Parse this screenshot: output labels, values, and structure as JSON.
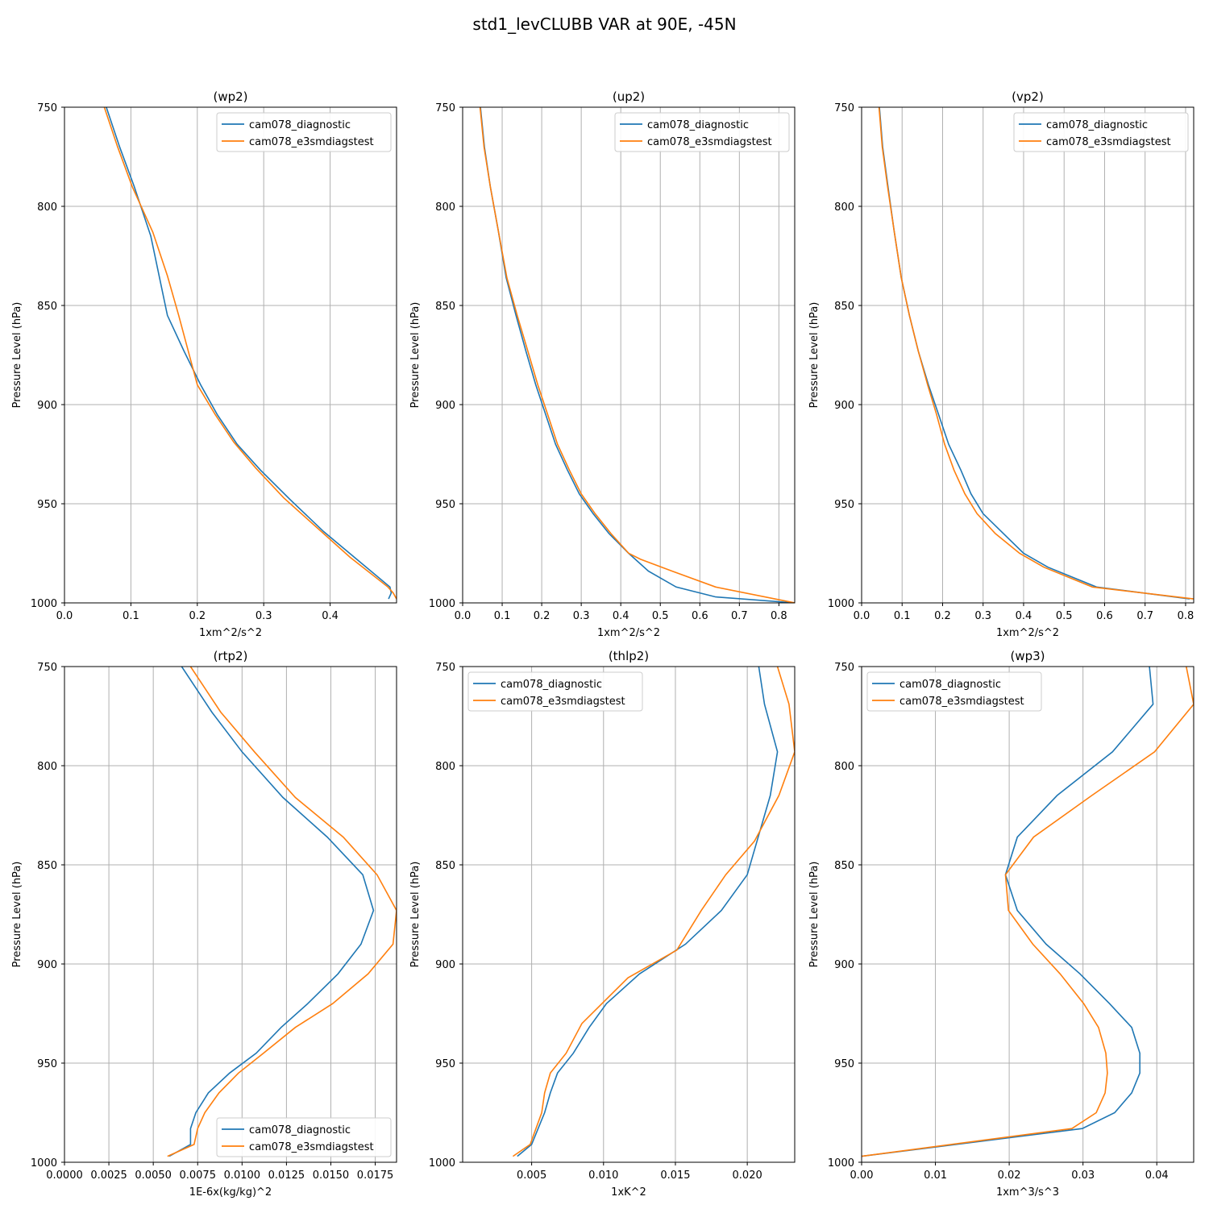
{
  "title": "std1_levCLUBB VAR at 90E, -45N",
  "colors": {
    "diagnostic": "#1f77b4",
    "e3smdiagstest": "#ff7f0e",
    "grid": "#b0b0b0",
    "axis": "#000000"
  },
  "chart_data": [
    {
      "type": "line",
      "title": "(wp2)",
      "xlabel": "1xm^2/s^2",
      "ylabel": "Pressure Level (hPa)",
      "xlim": [
        0,
        0.5
      ],
      "ylim": [
        1000,
        750
      ],
      "xticks": [
        0.0,
        0.1,
        0.2,
        0.3,
        0.4
      ],
      "xtick_labels": [
        "0.0",
        "0.1",
        "0.2",
        "0.3",
        "0.4"
      ],
      "yticks": [
        750,
        800,
        850,
        900,
        950,
        1000
      ],
      "ytick_labels": [
        "750",
        "800",
        "850",
        "900",
        "950",
        "1000"
      ],
      "legend": "upper right",
      "series": [
        {
          "name": "cam078_diagnostic",
          "color": "#1f77b4",
          "x": [
            0.063,
            0.083,
            0.105,
            0.13,
            0.155,
            0.18,
            0.205,
            0.23,
            0.26,
            0.295,
            0.34,
            0.39,
            0.44,
            0.49,
            0.492,
            0.488
          ],
          "y": [
            750,
            770,
            790,
            815,
            855,
            873,
            890,
            905,
            920,
            933,
            948,
            964,
            978,
            992,
            995,
            998
          ]
        },
        {
          "name": "cam078_e3smdiagstest",
          "color": "#ff7f0e",
          "x": [
            0.06,
            0.08,
            0.102,
            0.133,
            0.155,
            0.172,
            0.2,
            0.227,
            0.255,
            0.288,
            0.33,
            0.38,
            0.43,
            0.487,
            0.495,
            0.5
          ],
          "y": [
            750,
            770,
            790,
            813,
            835,
            855,
            890,
            905,
            919,
            932,
            947,
            962,
            977,
            992,
            995,
            998
          ]
        }
      ]
    },
    {
      "type": "line",
      "title": "(up2)",
      "xlabel": "1xm^2/s^2",
      "ylabel": "Pressure Level (hPa)",
      "xlim": [
        0,
        0.84
      ],
      "ylim": [
        1000,
        750
      ],
      "xticks": [
        0.0,
        0.1,
        0.2,
        0.3,
        0.4,
        0.5,
        0.6,
        0.7,
        0.8
      ],
      "xtick_labels": [
        "0.0",
        "0.1",
        "0.2",
        "0.3",
        "0.4",
        "0.5",
        "0.6",
        "0.7",
        "0.8"
      ],
      "yticks": [
        750,
        800,
        850,
        900,
        950,
        1000
      ],
      "ytick_labels": [
        "750",
        "800",
        "850",
        "900",
        "950",
        "1000"
      ],
      "legend": "upper right",
      "series": [
        {
          "name": "cam078_diagnostic",
          "color": "#1f77b4",
          "x": [
            0.045,
            0.055,
            0.07,
            0.09,
            0.11,
            0.135,
            0.16,
            0.185,
            0.21,
            0.235,
            0.265,
            0.295,
            0.33,
            0.37,
            0.42,
            0.47,
            0.54,
            0.64,
            0.84
          ],
          "y": [
            750,
            770,
            790,
            812,
            836,
            855,
            873,
            890,
            905,
            920,
            933,
            945,
            955,
            965,
            975,
            984,
            992,
            997,
            1000
          ]
        },
        {
          "name": "cam078_e3smdiagstest",
          "color": "#ff7f0e",
          "x": [
            0.044,
            0.054,
            0.07,
            0.09,
            0.112,
            0.138,
            0.165,
            0.19,
            0.215,
            0.24,
            0.27,
            0.3,
            0.335,
            0.375,
            0.42,
            0.45,
            0.53,
            0.64,
            0.84
          ],
          "y": [
            750,
            770,
            790,
            812,
            836,
            855,
            873,
            890,
            905,
            920,
            933,
            945,
            955,
            965,
            975,
            978,
            984,
            992,
            1000
          ]
        }
      ]
    },
    {
      "type": "line",
      "title": "(vp2)",
      "xlabel": "1xm^2/s^2",
      "ylabel": "Pressure Level (hPa)",
      "xlim": [
        0,
        0.82
      ],
      "ylim": [
        1000,
        750
      ],
      "xticks": [
        0.0,
        0.1,
        0.2,
        0.3,
        0.4,
        0.5,
        0.6,
        0.7,
        0.8
      ],
      "xtick_labels": [
        "0.0",
        "0.1",
        "0.2",
        "0.3",
        "0.4",
        "0.5",
        "0.6",
        "0.7",
        "0.8"
      ],
      "yticks": [
        750,
        800,
        850,
        900,
        950,
        1000
      ],
      "ytick_labels": [
        "750",
        "800",
        "850",
        "900",
        "950",
        "1000"
      ],
      "legend": "upper right",
      "series": [
        {
          "name": "cam078_diagnostic",
          "color": "#1f77b4",
          "x": [
            0.044,
            0.052,
            0.065,
            0.08,
            0.098,
            0.118,
            0.14,
            0.165,
            0.19,
            0.215,
            0.245,
            0.27,
            0.3,
            0.35,
            0.4,
            0.46,
            0.58,
            0.81
          ],
          "y": [
            750,
            770,
            790,
            812,
            836,
            855,
            873,
            890,
            905,
            920,
            933,
            945,
            955,
            965,
            975,
            982,
            992,
            998
          ]
        },
        {
          "name": "cam078_e3smdiagstest",
          "color": "#ff7f0e",
          "x": [
            0.043,
            0.051,
            0.064,
            0.08,
            0.098,
            0.118,
            0.14,
            0.163,
            0.185,
            0.205,
            0.228,
            0.255,
            0.285,
            0.33,
            0.39,
            0.45,
            0.57,
            0.82
          ],
          "y": [
            750,
            770,
            790,
            812,
            836,
            855,
            873,
            890,
            905,
            920,
            933,
            945,
            955,
            965,
            975,
            982,
            992,
            998
          ]
        }
      ]
    },
    {
      "type": "line",
      "title": "(rtp2)",
      "xlabel": "1E-6x(kg/kg)^2",
      "ylabel": "Pressure Level (hPa)",
      "xlim": [
        0,
        0.0187
      ],
      "ylim": [
        1000,
        750
      ],
      "xticks": [
        0,
        0.0025,
        0.005,
        0.0075,
        0.01,
        0.0125,
        0.015,
        0.0175
      ],
      "xtick_labels": [
        "0.0000",
        "0.0025",
        "0.0050",
        "0.0075",
        "0.0100",
        "0.0125",
        "0.0150",
        "0.0175"
      ],
      "yticks": [
        750,
        800,
        850,
        900,
        950,
        1000
      ],
      "ytick_labels": [
        "750",
        "800",
        "850",
        "900",
        "950",
        "1000"
      ],
      "legend": "lower right",
      "series": [
        {
          "name": "cam078_diagnostic",
          "color": "#1f77b4",
          "x": [
            0.0066,
            0.0083,
            0.01,
            0.0123,
            0.0148,
            0.0168,
            0.0174,
            0.0167,
            0.0154,
            0.0137,
            0.0122,
            0.0108,
            0.0093,
            0.0081,
            0.0074,
            0.0071,
            0.0071,
            0.0059
          ],
          "y": [
            750,
            773,
            793,
            816,
            836,
            855,
            873,
            890,
            905,
            920,
            932,
            945,
            955,
            965,
            975,
            983,
            991,
            997
          ]
        },
        {
          "name": "cam078_e3smdiagstest",
          "color": "#ff7f0e",
          "x": [
            0.0071,
            0.0088,
            0.0107,
            0.013,
            0.0157,
            0.0176,
            0.0187,
            0.0185,
            0.0171,
            0.0151,
            0.013,
            0.0112,
            0.0098,
            0.0087,
            0.0079,
            0.0075,
            0.0073,
            0.0058
          ],
          "y": [
            750,
            773,
            793,
            816,
            836,
            855,
            873,
            890,
            905,
            920,
            932,
            945,
            955,
            965,
            975,
            983,
            991,
            997
          ]
        }
      ]
    },
    {
      "type": "line",
      "title": "(thlp2)",
      "xlabel": "1xK^2",
      "ylabel": "Pressure Level (hPa)",
      "xlim": [
        0.0002,
        0.0233
      ],
      "ylim": [
        1000,
        750
      ],
      "xticks": [
        0.005,
        0.01,
        0.015,
        0.02
      ],
      "xtick_labels": [
        "0.005",
        "0.010",
        "0.015",
        "0.020"
      ],
      "yticks": [
        750,
        800,
        850,
        900,
        950,
        1000
      ],
      "ytick_labels": [
        "750",
        "800",
        "850",
        "900",
        "950",
        "1000"
      ],
      "legend": "upper left",
      "series": [
        {
          "name": "cam078_diagnostic",
          "color": "#1f77b4",
          "x": [
            0.0208,
            0.0212,
            0.0221,
            0.0216,
            0.02,
            0.0182,
            0.0157,
            0.0125,
            0.0102,
            0.009,
            0.0079,
            0.0068,
            0.0063,
            0.0059,
            0.005,
            0.004
          ],
          "y": [
            750,
            769,
            793,
            815,
            855,
            873,
            890,
            905,
            920,
            932,
            945,
            955,
            965,
            975,
            991,
            997
          ]
        },
        {
          "name": "cam078_e3smdiagstest",
          "color": "#ff7f0e",
          "x": [
            0.0221,
            0.0229,
            0.0233,
            0.0222,
            0.0205,
            0.0185,
            0.0168,
            0.0151,
            0.0117,
            0.0085,
            0.0074,
            0.0063,
            0.0059,
            0.0057,
            0.0049,
            0.0037
          ],
          "y": [
            750,
            769,
            793,
            815,
            838,
            855,
            873,
            893,
            907,
            930,
            945,
            955,
            965,
            975,
            991,
            997
          ]
        }
      ]
    },
    {
      "type": "line",
      "title": "(wp3)",
      "xlabel": "1xm^3/s^3",
      "ylabel": "Pressure Level (hPa)",
      "xlim": [
        0,
        0.045
      ],
      "ylim": [
        1000,
        750
      ],
      "xticks": [
        0,
        0.01,
        0.02,
        0.03,
        0.04
      ],
      "xtick_labels": [
        "0.00",
        "0.01",
        "0.02",
        "0.03",
        "0.04"
      ],
      "yticks": [
        750,
        800,
        850,
        900,
        950,
        1000
      ],
      "ytick_labels": [
        "750",
        "800",
        "850",
        "900",
        "950",
        "1000"
      ],
      "legend": "upper left",
      "series": [
        {
          "name": "cam078_diagnostic",
          "color": "#1f77b4",
          "x": [
            0.039,
            0.0395,
            0.034,
            0.0265,
            0.0211,
            0.0195,
            0.0211,
            0.025,
            0.0296,
            0.0336,
            0.0366,
            0.0377,
            0.0377,
            0.0366,
            0.0343,
            0.0299,
            0.0
          ],
          "y": [
            750,
            769,
            793,
            815,
            836,
            855,
            873,
            890,
            905,
            920,
            932,
            945,
            955,
            965,
            975,
            983,
            997
          ]
        },
        {
          "name": "cam078_e3smdiagstest",
          "color": "#ff7f0e",
          "x": [
            0.044,
            0.045,
            0.0397,
            0.0312,
            0.0233,
            0.0195,
            0.0199,
            0.0232,
            0.0269,
            0.0301,
            0.0321,
            0.0331,
            0.0333,
            0.033,
            0.0318,
            0.0285,
            0.0
          ],
          "y": [
            750,
            769,
            793,
            815,
            836,
            855,
            873,
            890,
            905,
            920,
            932,
            945,
            955,
            965,
            975,
            983,
            997
          ]
        }
      ]
    }
  ]
}
